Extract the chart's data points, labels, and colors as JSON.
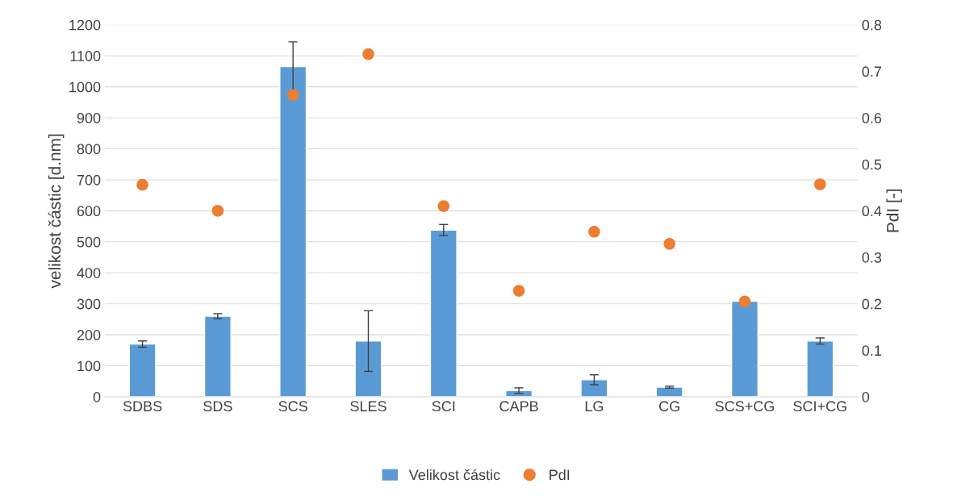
{
  "chart_data": {
    "type": "bar",
    "ylabel": "velikost částic [d.nm]",
    "y2label": "PdI [-]",
    "categories": [
      "SDBS",
      "SDS",
      "SCS",
      "SLES",
      "SCI",
      "CAPB",
      "LG",
      "CG",
      "SCS+CG",
      "SCI+CG"
    ],
    "series": [
      {
        "name": "Velikost částic",
        "color": "#5b9bd5",
        "values": [
          170,
          260,
          1065,
          180,
          538,
          20,
          55,
          31,
          308,
          180
        ],
        "errors": [
          10,
          8,
          80,
          98,
          18,
          9,
          16,
          3,
          null,
          10
        ]
      },
      {
        "name": "PdI",
        "type": "scatter",
        "axis": "y2",
        "color": "#ed7d31",
        "marker": "circle",
        "values": [
          0.456,
          0.4,
          0.649,
          0.737,
          0.41,
          0.228,
          0.355,
          0.329,
          0.205,
          0.457
        ]
      }
    ],
    "ylim": [
      0,
      1200
    ],
    "yticks": [
      0,
      100,
      200,
      300,
      400,
      500,
      600,
      700,
      800,
      900,
      1000,
      1100,
      1200
    ],
    "y2lim": [
      0,
      0.8
    ],
    "y2ticks": [
      0,
      0.1,
      0.2,
      0.3,
      0.4,
      0.5,
      0.6,
      0.7,
      0.8
    ],
    "grid": "y",
    "legend": "bottom"
  }
}
